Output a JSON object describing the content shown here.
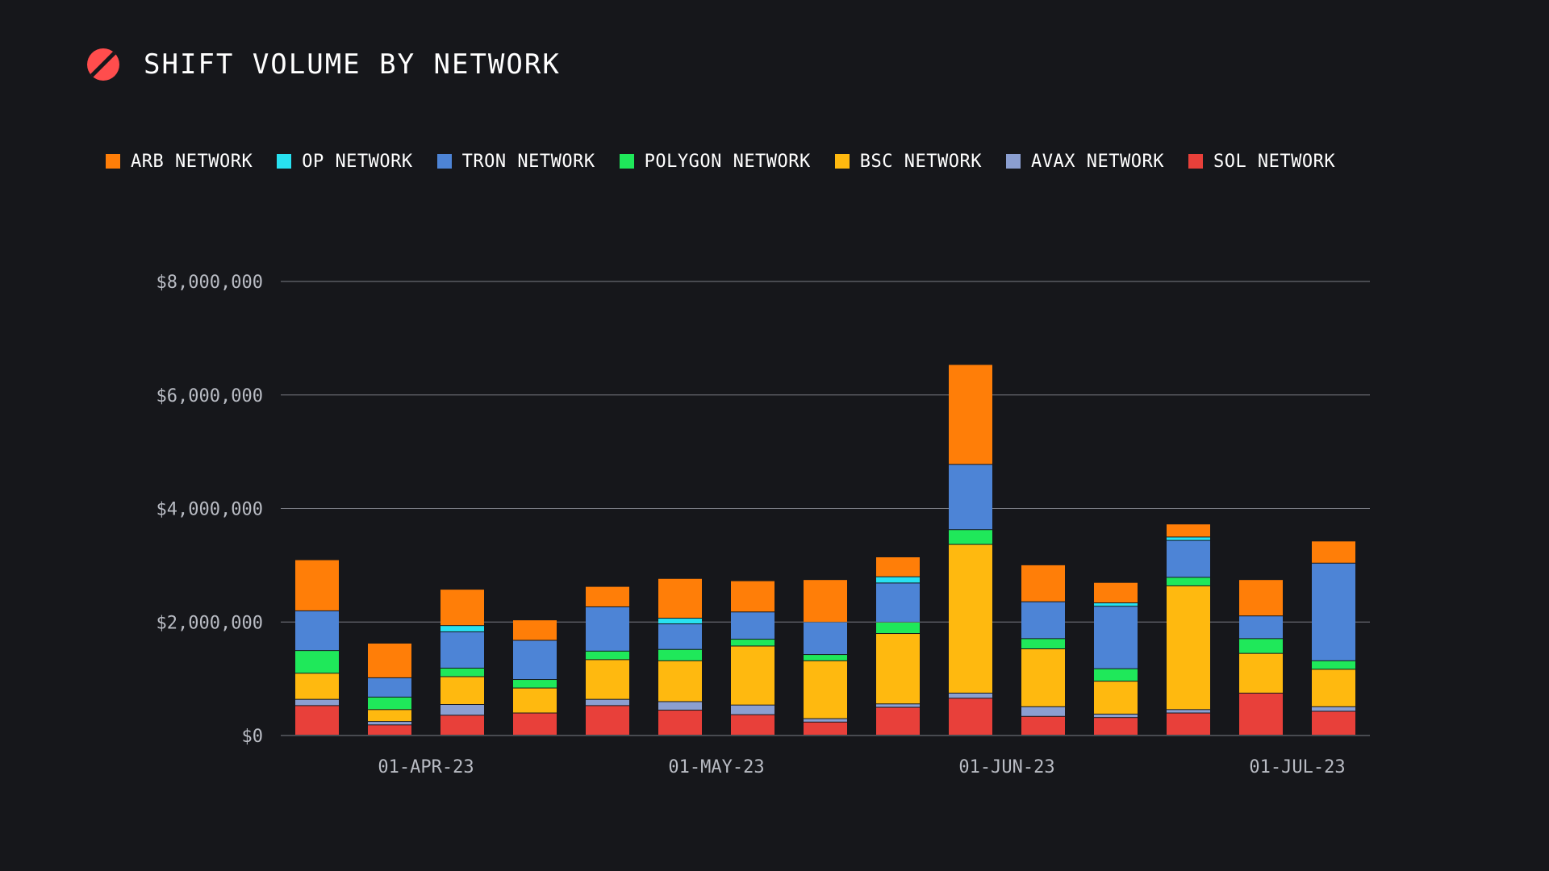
{
  "title": "SHIFT VOLUME BY NETWORK",
  "colors": {
    "background": "#16171b",
    "logo": "#ff4d4d",
    "grid": "#7a7c84",
    "text": "#ffffff",
    "tick": "#b9bcc4"
  },
  "chart_data": {
    "type": "bar",
    "stacked": true,
    "title": "SHIFT VOLUME BY NETWORK",
    "xlabel": "",
    "ylabel": "",
    "ylim": [
      0,
      8000000
    ],
    "yticks": [
      {
        "value": 0,
        "label": "$0"
      },
      {
        "value": 2000000,
        "label": "$2,000,000"
      },
      {
        "value": 4000000,
        "label": "$4,000,000"
      },
      {
        "value": 6000000,
        "label": "$6,000,000"
      },
      {
        "value": 8000000,
        "label": "$8,000,000"
      }
    ],
    "xticks": [
      {
        "index": 1.5,
        "label": "01-APR-23"
      },
      {
        "index": 5.5,
        "label": "01-MAY-23"
      },
      {
        "index": 9.5,
        "label": "01-JUN-23"
      },
      {
        "index": 13.5,
        "label": "01-JUL-23"
      }
    ],
    "grid": true,
    "legend_position": "top",
    "bar_count": 15,
    "series": [
      {
        "name": "SOL NETWORK",
        "color": "#e8403a",
        "values": [
          520000,
          180000,
          350000,
          390000,
          520000,
          440000,
          360000,
          230000,
          490000,
          650000,
          330000,
          310000,
          390000,
          740000,
          420000
        ]
      },
      {
        "name": "AVAX NETWORK",
        "color": "#8b9fd1",
        "values": [
          110000,
          60000,
          190000,
          0,
          110000,
          150000,
          170000,
          60000,
          60000,
          90000,
          170000,
          60000,
          60000,
          0,
          80000
        ]
      },
      {
        "name": "BSC NETWORK",
        "color": "#ffb90f",
        "values": [
          460000,
          210000,
          490000,
          440000,
          700000,
          720000,
          1040000,
          1020000,
          1240000,
          2620000,
          1020000,
          580000,
          2180000,
          700000,
          660000
        ]
      },
      {
        "name": "POLYGON NETWORK",
        "color": "#1fe85a",
        "values": [
          400000,
          220000,
          150000,
          150000,
          150000,
          200000,
          120000,
          110000,
          200000,
          260000,
          180000,
          220000,
          150000,
          260000,
          150000
        ]
      },
      {
        "name": "TRON NETWORK",
        "color": "#4d84d6",
        "values": [
          700000,
          340000,
          640000,
          690000,
          780000,
          450000,
          480000,
          570000,
          690000,
          1150000,
          650000,
          1100000,
          650000,
          400000,
          1720000
        ]
      },
      {
        "name": "OP NETWORK",
        "color": "#28e1f0",
        "values": [
          0,
          0,
          110000,
          0,
          0,
          100000,
          0,
          0,
          110000,
          0,
          0,
          60000,
          60000,
          0,
          0
        ]
      },
      {
        "name": "ARB NETWORK",
        "color": "#ff7e08",
        "values": [
          900000,
          610000,
          640000,
          360000,
          360000,
          700000,
          550000,
          750000,
          350000,
          1760000,
          650000,
          360000,
          230000,
          640000,
          390000
        ]
      }
    ]
  },
  "legend": [
    {
      "label": "ARB NETWORK",
      "color": "#ff7e08"
    },
    {
      "label": "OP NETWORK",
      "color": "#28e1f0"
    },
    {
      "label": "TRON NETWORK",
      "color": "#4d84d6"
    },
    {
      "label": "POLYGON NETWORK",
      "color": "#1fe85a"
    },
    {
      "label": "BSC NETWORK",
      "color": "#ffb90f"
    },
    {
      "label": "AVAX NETWORK",
      "color": "#8b9fd1"
    },
    {
      "label": "SOL NETWORK",
      "color": "#e8403a"
    }
  ]
}
